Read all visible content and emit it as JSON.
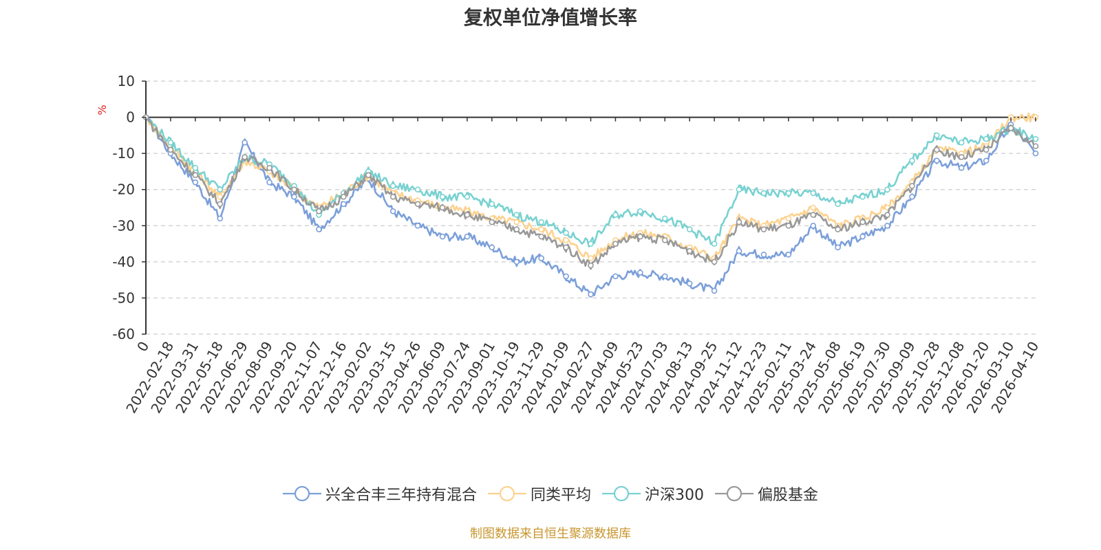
{
  "chart_data": {
    "type": "line",
    "title": "复权单位净值增长率",
    "ylabel": "%",
    "ylim": [
      -60,
      10
    ],
    "yticks": [
      10,
      0,
      -10,
      -20,
      -30,
      -40,
      -50,
      -60
    ],
    "grid": true,
    "legend_position": "bottom-center",
    "x_labels": [
      "0",
      "2022-02-18",
      "2022-03-31",
      "2022-05-18",
      "2022-06-29",
      "2022-08-09",
      "2022-09-20",
      "2022-11-07",
      "2022-12-16",
      "2023-02-02",
      "2023-03-15",
      "2023-04-26",
      "2023-06-09",
      "2023-07-24",
      "2023-09-01",
      "2023-10-19",
      "2023-11-29",
      "2024-01-09",
      "2024-02-27",
      "2024-04-09",
      "2024-05-23",
      "2024-07-03",
      "2024-08-13",
      "2024-09-25",
      "2024-11-12",
      "2024-12-23",
      "2025-02-11",
      "2025-03-24",
      "2025-05-08",
      "2025-06-19",
      "2025-07-30",
      "2025-09-09",
      "2025-10-28",
      "2025-12-08",
      "2026-01-20",
      "2026-03-10",
      "2026-04-10"
    ],
    "series": [
      {
        "name": "兴全合丰三年持有混合",
        "color": "#7b9fd9",
        "values": [
          0,
          -10,
          -18,
          -28,
          -7,
          -18,
          -22,
          -31,
          -24,
          -17,
          -26,
          -30,
          -33,
          -33,
          -36,
          -40,
          -39,
          -44,
          -49,
          -44,
          -43,
          -44,
          -46,
          -48,
          -37,
          -38,
          -38,
          -30,
          -36,
          -33,
          -30,
          -22,
          -12,
          -14,
          -12,
          -2,
          -10
        ]
      },
      {
        "name": "同类平均",
        "color": "#fcd28f",
        "values": [
          0,
          -8,
          -15,
          -22,
          -12,
          -15,
          -20,
          -25,
          -21,
          -16,
          -21,
          -23,
          -25,
          -26,
          -28,
          -29,
          -31,
          -34,
          -39,
          -34,
          -32,
          -33,
          -36,
          -39,
          -28,
          -30,
          -28,
          -25,
          -30,
          -28,
          -25,
          -18,
          -9,
          -10,
          -8,
          0,
          0
        ]
      },
      {
        "name": "沪深300",
        "color": "#79d1d1",
        "values": [
          0,
          -7,
          -14,
          -20,
          -11,
          -13,
          -19,
          -27,
          -21,
          -15,
          -19,
          -20,
          -22,
          -22,
          -24,
          -27,
          -29,
          -32,
          -35,
          -27,
          -26,
          -28,
          -31,
          -35,
          -20,
          -21,
          -21,
          -21,
          -24,
          -22,
          -20,
          -12,
          -5,
          -7,
          -6,
          -3,
          -6
        ]
      },
      {
        "name": "偏股基金",
        "color": "#999999",
        "values": [
          0,
          -9,
          -16,
          -24,
          -11,
          -14,
          -20,
          -26,
          -22,
          -16,
          -22,
          -24,
          -25,
          -27,
          -29,
          -31,
          -33,
          -36,
          -41,
          -35,
          -33,
          -34,
          -37,
          -40,
          -29,
          -31,
          -30,
          -27,
          -31,
          -29,
          -27,
          -19,
          -9,
          -11,
          -9,
          -3,
          -8
        ]
      }
    ]
  },
  "source_text": "制图数据来自恒生聚源数据库",
  "source_color": "#c8962e"
}
